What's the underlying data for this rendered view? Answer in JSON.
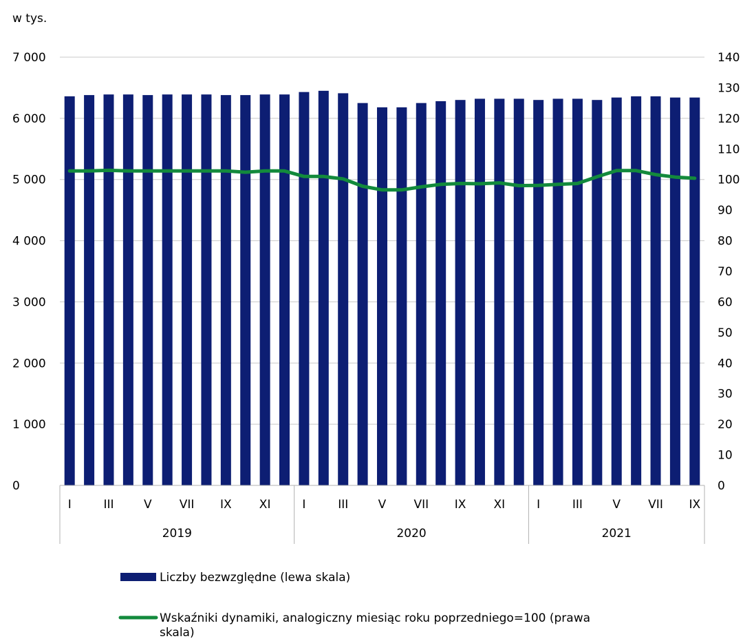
{
  "chart_data": {
    "type": "bar+line",
    "unit_label": "w tys.",
    "categories": [
      "I",
      "II",
      "III",
      "IV",
      "V",
      "VI",
      "VII",
      "VIII",
      "IX",
      "X",
      "XI",
      "XII",
      "I",
      "II",
      "III",
      "IV",
      "V",
      "VI",
      "VII",
      "VIII",
      "IX",
      "X",
      "XI",
      "XII",
      "I",
      "II",
      "III",
      "IV",
      "V",
      "VI",
      "VII",
      "VIII",
      "IX"
    ],
    "x_tick_labels": [
      "I",
      "",
      "III",
      "",
      "V",
      "",
      "VII",
      "",
      "IX",
      "",
      "XI",
      "",
      "I",
      "",
      "III",
      "",
      "V",
      "",
      "VII",
      "",
      "IX",
      "",
      "XI",
      "",
      "I",
      "",
      "III",
      "",
      "V",
      "",
      "VII",
      "",
      "IX"
    ],
    "years": [
      {
        "label": "2019",
        "start": 0,
        "count": 12
      },
      {
        "label": "2020",
        "start": 12,
        "count": 12
      },
      {
        "label": "2021",
        "start": 24,
        "count": 9
      }
    ],
    "left_axis": {
      "ylim": [
        0,
        7000
      ],
      "ticks": [
        0,
        1000,
        2000,
        3000,
        4000,
        5000,
        6000,
        7000
      ],
      "tick_labels": [
        "0",
        "1 000",
        "2 000",
        "3 000",
        "4 000",
        "5 000",
        "6 000",
        "7 000"
      ]
    },
    "right_axis": {
      "ylim": [
        0,
        140
      ],
      "ticks": [
        0,
        10,
        20,
        30,
        40,
        50,
        60,
        70,
        80,
        90,
        100,
        110,
        120,
        130,
        140
      ],
      "tick_labels": [
        "0",
        "10",
        "20",
        "30",
        "40",
        "50",
        "60",
        "70",
        "80",
        "90",
        "100",
        "110",
        "120",
        "130",
        "140"
      ]
    },
    "series": [
      {
        "name": "Liczby bezwzględne (lewa skala)",
        "type": "bar",
        "axis": "left",
        "color": "#0d1e73",
        "values": [
          6360,
          6380,
          6390,
          6390,
          6380,
          6390,
          6390,
          6390,
          6380,
          6380,
          6390,
          6390,
          6430,
          6450,
          6410,
          6250,
          6180,
          6180,
          6250,
          6280,
          6300,
          6320,
          6320,
          6320,
          6300,
          6320,
          6320,
          6300,
          6340,
          6360,
          6360,
          6340,
          6340
        ]
      },
      {
        "name": "Wskaźniki dynamiki, analogiczny miesiąc roku poprzedniego=100 (prawa skala)",
        "type": "line",
        "axis": "right",
        "color": "#138a3c",
        "values": [
          102.8,
          102.8,
          103.0,
          102.8,
          102.8,
          102.8,
          102.8,
          102.8,
          102.8,
          102.4,
          102.8,
          102.8,
          101.0,
          101.0,
          100.2,
          97.8,
          96.6,
          96.6,
          97.6,
          98.4,
          98.7,
          98.6,
          98.9,
          98.0,
          98.1,
          98.4,
          98.7,
          100.9,
          102.9,
          102.9,
          101.6,
          100.8,
          100.4
        ]
      }
    ],
    "legend": {
      "position": "bottom",
      "items": [
        {
          "label": "Liczby bezwzględne (lewa skala)",
          "marker": "bar",
          "color": "#0d1e73"
        },
        {
          "label_line1": "Wskaźniki dynamiki, analogiczny miesiąc roku poprzedniego=100 (prawa",
          "label_line2": "skala)",
          "marker": "line",
          "color": "#138a3c"
        }
      ]
    },
    "grid": true
  }
}
